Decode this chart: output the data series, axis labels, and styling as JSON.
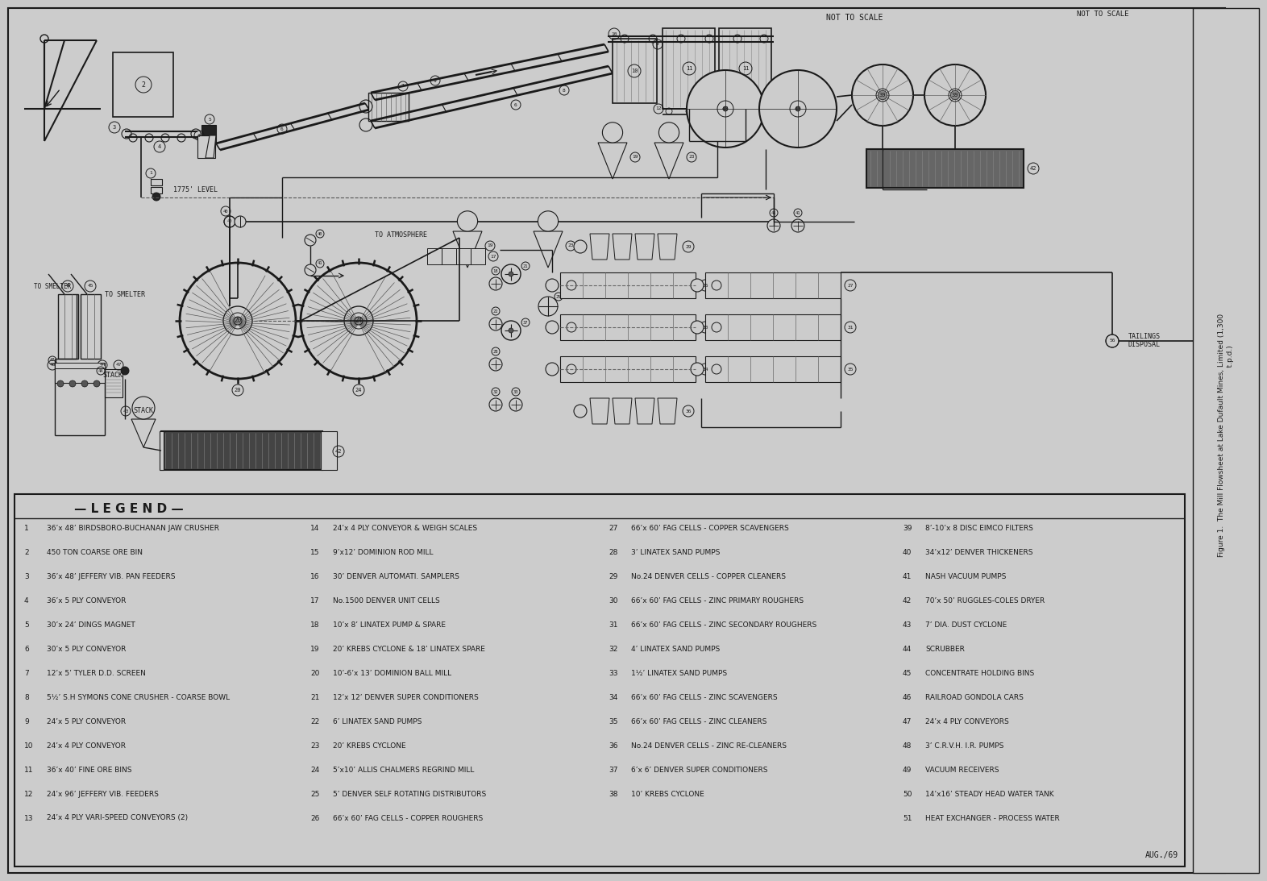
{
  "title": "Figure 1.  The Mill Flowsheet at Lake Dufault Mines, Limited (1,300\n                                                                    t.p.d.)",
  "subtitle": "NOT TO SCALE",
  "bg_color": "#c9c9c9",
  "line_color": "#1a1a1a",
  "legend_items_col1": [
    "1   36’x 48’ BIRDSBORO-BUCHANAN JAW CRUSHER",
    "2   450 TON COARSE ORE BIN",
    "3   36’x 48’ JEFFERY VIB. PAN FEEDERS",
    "4   36’x 5 PLY CONVEYOR",
    "5   30’x 24’ DINGS MAGNET",
    "6   30’x 5 PLY CONVEYOR",
    "7   12’x 5’ TYLER D.D. SCREEN",
    "8   5½’ S.H SYMONS CONE CRUSHER - COARSE BOWL",
    "9   24’x 5 PLY CONVEYOR",
    "10  24’x 4 PLY CONVEYOR",
    "11  36’x 40’ FINE ORE BINS",
    "12  24’x 96’ JEFFERY VIB. FEEDERS",
    "13  24’x 4 PLY VARI-SPEED CONVEYORS (2)"
  ],
  "legend_items_col2": [
    "14  24’x 4 PLY CONVEYOR & WEIGH SCALES",
    "15  9’x12’ DOMINION ROD MILL",
    "16  30’ DENVER AUTOMATI. SAMPLERS",
    "17  No.1500 DENVER UNIT CELLS",
    "18  10’x 8’ LINATEX PUMP & SPARE",
    "19  20’ KREBS CYCLONE & 18’ LINATEX SPARE",
    "20  10’-6’x 13’ DOMINION BALL MILL",
    "21  12’x 12’ DENVER SUPER CONDITIONERS",
    "22  6’ LINATEX SAND PUMPS",
    "23  20’ KREBS CYCLONE",
    "24  5’x10’ ALLIS CHALMERS REGRIND MILL",
    "25  5’ DENVER SELF ROTATING DISTRIBUTORS",
    "26  66’x 60’ FAG CELLS - COPPER ROUGHERS"
  ],
  "legend_items_col3": [
    "27  66’x 60’ FAG CELLS - COPPER SCAVENGERS",
    "28  3’ LINATEX SAND PUMPS",
    "29  No.24 DENVER CELLS - COPPER CLEANERS",
    "30  66’x 60’ FAG CELLS - ZINC PRIMARY ROUGHERS",
    "31  66’x 60’ FAG CELLS - ZINC SECONDARY ROUGHERS",
    "32  4’ LINATEX SAND PUMPS",
    "33  1½’ LINATEX SAND PUMPS",
    "34  66’x 60’ FAG CELLS - ZINC SCAVENGERS",
    "35  66’x 60’ FAG CELLS - ZINC CLEANERS",
    "36  No.24 DENVER CELLS - ZINC RE-CLEANERS",
    "37  6’x 6’ DENVER SUPER CONDITIONERS",
    "38  10’ KREBS CYCLONE"
  ],
  "legend_items_col4": [
    "39  8’-10’x 8 DISC EIMCO FILTERS",
    "40  34’x12’ DENVER THICKENERS",
    "41  NASH VACUUM PUMPS",
    "42  70’x 50’ RUGGLES-COLES DRYER",
    "43  7’ DIA. DUST CYCLONE",
    "44  SCRUBBER",
    "45  CONCENTRATE HOLDING BINS",
    "46  RAILROAD GONDOLA CARS",
    "47  24’x 4 PLY CONVEYORS",
    "48  3’ C.R.V.H. I.R. PUMPS",
    "49  VACUUM RECEIVERS",
    "50  14’x16’ STEADY HEAD WATER TANK",
    "51  HEAT EXCHANGER - PROCESS WATER"
  ],
  "date": "AUG./69"
}
